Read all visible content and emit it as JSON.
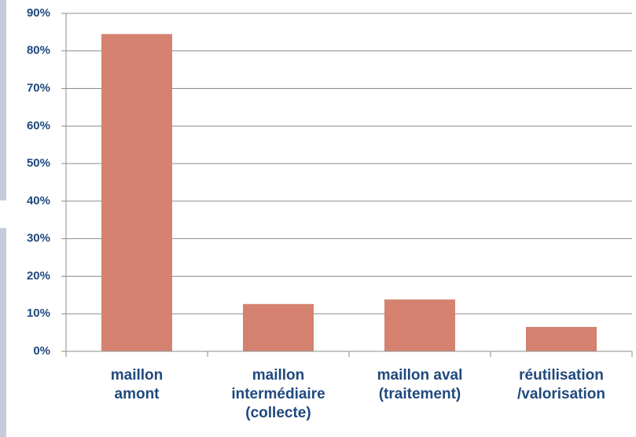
{
  "chart_data": {
    "type": "bar",
    "categories": [
      [
        "maillon",
        "amont"
      ],
      [
        "maillon",
        "intermédiaire",
        "(collecte)"
      ],
      [
        "maillon aval",
        "(traitement)"
      ],
      [
        "réutilisation",
        "/valorisation"
      ]
    ],
    "values": [
      84.5,
      12.6,
      13.8,
      6.5
    ],
    "color": "#d4826f",
    "ylim": [
      0,
      90
    ],
    "yticks": [
      {
        "value": 0,
        "label": "0%"
      },
      {
        "value": 10,
        "label": "10%"
      },
      {
        "value": 20,
        "label": "20%"
      },
      {
        "value": 30,
        "label": "30%"
      },
      {
        "value": 40,
        "label": "40%"
      },
      {
        "value": 50,
        "label": "50%"
      },
      {
        "value": 60,
        "label": "60%"
      },
      {
        "value": 70,
        "label": "70%"
      },
      {
        "value": 80,
        "label": "80%"
      },
      {
        "value": 90,
        "label": "90%"
      }
    ],
    "grid": true
  }
}
